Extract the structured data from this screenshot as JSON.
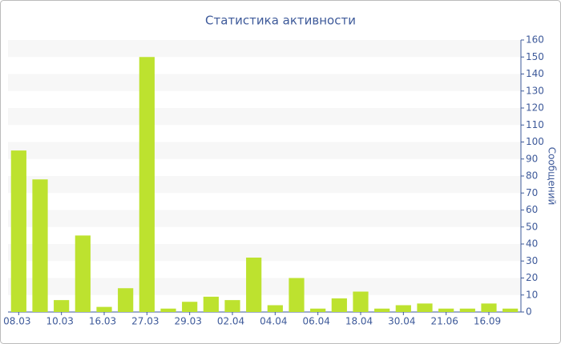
{
  "chart_data": {
    "type": "bar",
    "title": "Статистика активности",
    "y_label": "Сообщений",
    "categories": [
      "08.03",
      null,
      "10.03",
      null,
      "16.03",
      null,
      "27.03",
      null,
      "29.03",
      null,
      "02.04",
      null,
      "04.04",
      null,
      "06.04",
      null,
      "18.04",
      null,
      "30.04",
      null,
      "21.06",
      null,
      "16.09",
      null
    ],
    "values": [
      95,
      78,
      7,
      45,
      3,
      14,
      150,
      2,
      6,
      9,
      7,
      32,
      4,
      20,
      2,
      8,
      12,
      2,
      4,
      5,
      2,
      2,
      5,
      2
    ],
    "color": "#bde22f",
    "ylim": [
      0,
      160
    ],
    "yticks": [
      0,
      10,
      20,
      30,
      40,
      50,
      60,
      70,
      80,
      90,
      100,
      110,
      120,
      130,
      140,
      150,
      160
    ],
    "grid": true,
    "y_axis_side": "right"
  }
}
